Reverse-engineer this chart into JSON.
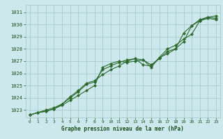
{
  "background_color": "#cce8ec",
  "grid_color": "#aacccc",
  "line_color": "#2d6a2d",
  "marker_color": "#2d6a2d",
  "title": "Graphe pression niveau de la mer (hPa)",
  "title_color": "#1a4d1a",
  "ylim": [
    1022.4,
    1031.6
  ],
  "xlim": [
    -0.5,
    23.5
  ],
  "yticks": [
    1023,
    1024,
    1025,
    1026,
    1027,
    1028,
    1029,
    1030,
    1031
  ],
  "xticks": [
    0,
    1,
    2,
    3,
    4,
    5,
    6,
    7,
    8,
    9,
    10,
    11,
    12,
    13,
    14,
    15,
    16,
    17,
    18,
    19,
    20,
    21,
    22,
    23
  ],
  "series": [
    [
      1022.6,
      1022.8,
      1022.9,
      1023.1,
      1023.4,
      1023.8,
      1024.2,
      1024.6,
      1025.0,
      1026.5,
      1026.8,
      1027.0,
      1026.9,
      1027.0,
      1027.1,
      1026.7,
      1027.2,
      1027.8,
      1028.0,
      1029.3,
      1029.9,
      1030.4,
      1030.6,
      1030.7
    ],
    [
      1022.6,
      1022.8,
      1022.9,
      1023.1,
      1023.5,
      1024.0,
      1024.5,
      1025.1,
      1025.3,
      1026.3,
      1026.6,
      1026.9,
      1027.1,
      1027.2,
      1027.1,
      1026.5,
      1027.3,
      1027.6,
      1028.0,
      1028.6,
      1029.9,
      1030.3,
      1030.6,
      1030.5
    ],
    [
      1022.6,
      1022.8,
      1023.0,
      1023.2,
      1023.5,
      1024.1,
      1024.6,
      1025.2,
      1025.4,
      1025.9,
      1026.3,
      1026.6,
      1027.0,
      1027.2,
      1026.7,
      1026.6,
      1027.3,
      1028.0,
      1028.3,
      1028.8,
      1029.2,
      1030.3,
      1030.5,
      1030.4
    ]
  ]
}
